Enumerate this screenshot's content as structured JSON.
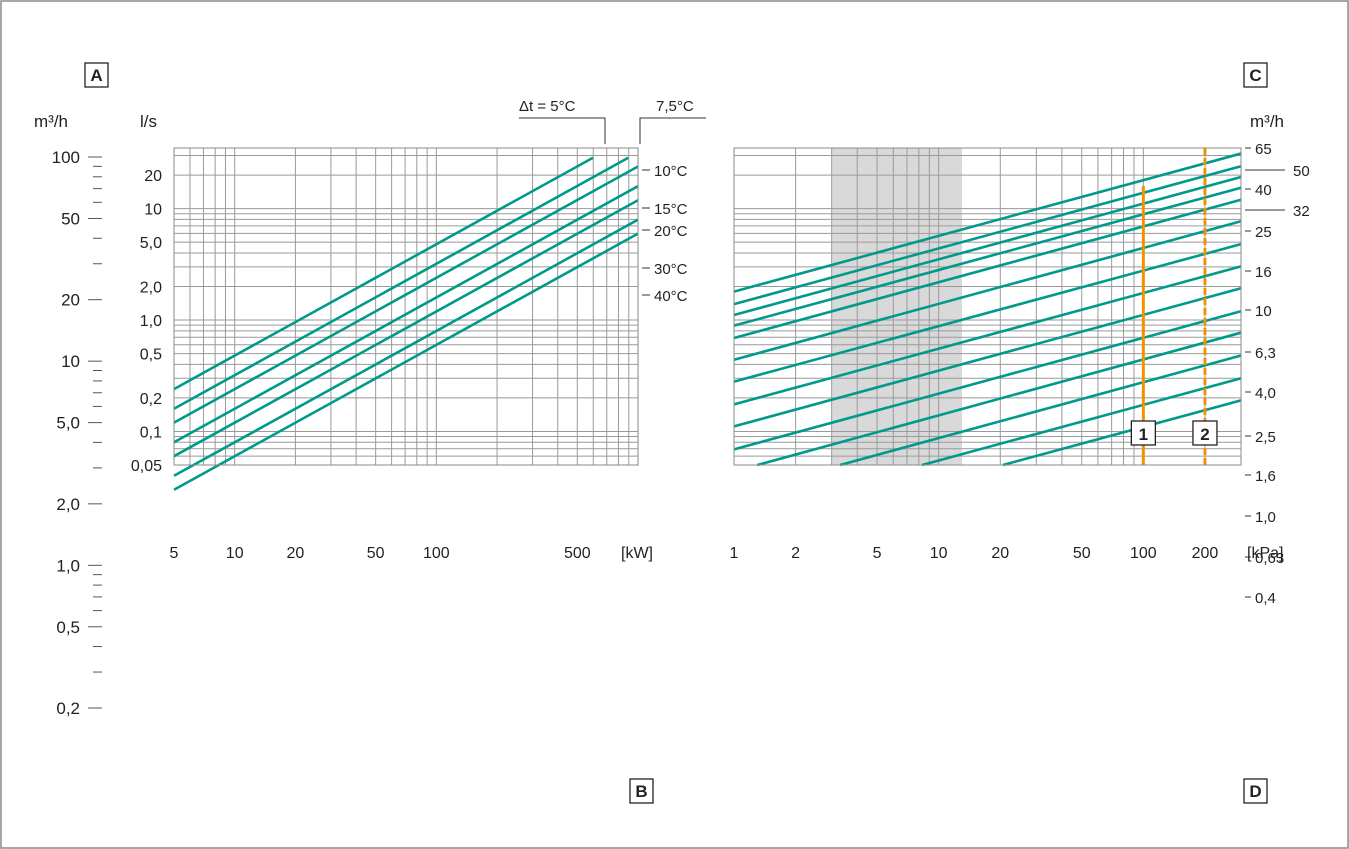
{
  "panels": {
    "left": {
      "box_labels": {
        "a": "A",
        "b": "B"
      },
      "axis_far_unit": "m³/h",
      "axis_inner_unit": "l/s",
      "x_unit": "[kW]",
      "delta_t_label": "Δt = 5°C",
      "delta_t2_label": "7,5°C"
    },
    "right": {
      "box_labels": {
        "c": "C",
        "d": "D"
      },
      "axis_right_unit": "m³/h",
      "x_unit": "[kPa]",
      "marker_labels": [
        "1",
        "2"
      ]
    }
  },
  "chart_data": [
    {
      "type": "line",
      "title": "",
      "xscale": "log",
      "yscale": "log",
      "xlim": [
        5,
        1000
      ],
      "ylim": [
        0.05,
        35
      ],
      "xlabel": "[kW]",
      "ylabel": "l/s",
      "x_tick_labels": [
        "5",
        "10",
        "20",
        "50",
        "100",
        "500"
      ],
      "x_ticks": [
        5,
        10,
        20,
        50,
        100,
        500
      ],
      "y_tick_labels": [
        "0,05",
        "0,1",
        "0,2",
        "0,5",
        "1,0",
        "2,0",
        "5,0",
        "10",
        "20"
      ],
      "y_ticks": [
        0.05,
        0.1,
        0.2,
        0.5,
        1.0,
        2.0,
        5.0,
        10,
        20
      ],
      "secondary_y_axis": {
        "label": "m³/h",
        "tick_labels": [
          "0,2",
          "0,5",
          "1,0",
          "2,0",
          "5,0",
          "10",
          "20",
          "50",
          "100"
        ],
        "ticks": [
          0.2,
          0.5,
          1.0,
          2.0,
          5.0,
          10,
          20,
          50,
          100
        ]
      },
      "series": [
        {
          "name": "Δt = 5°C",
          "points": [
            [
              5,
              0.24
            ],
            [
              598,
              28.6
            ]
          ]
        },
        {
          "name": "7,5°C",
          "points": [
            [
              5,
              0.16
            ],
            [
              895,
              28.6
            ]
          ]
        },
        {
          "name": "10°C",
          "points": [
            [
              5,
              0.12
            ],
            [
              1000,
              23.9
            ]
          ]
        },
        {
          "name": "15°C",
          "points": [
            [
              5,
              0.08
            ],
            [
              1000,
              15.9
            ]
          ]
        },
        {
          "name": "20°C",
          "points": [
            [
              5,
              0.06
            ],
            [
              1000,
              11.9
            ]
          ]
        },
        {
          "name": "30°C",
          "points": [
            [
              5,
              0.04
            ],
            [
              1000,
              7.96
            ]
          ]
        },
        {
          "name": "40°C",
          "points": [
            [
              5,
              0.03
            ],
            [
              1000,
              5.97
            ]
          ]
        }
      ],
      "grid": true
    },
    {
      "type": "line",
      "title": "",
      "xscale": "log",
      "yscale": "log",
      "xlim": [
        1,
        300
      ],
      "ylim": [
        0.05,
        35
      ],
      "xlabel": "[kPa]",
      "x_tick_labels": [
        "1",
        "2",
        "5",
        "10",
        "20",
        "50",
        "100",
        "200"
      ],
      "x_ticks": [
        1,
        2,
        5,
        10,
        20,
        50,
        100,
        200
      ],
      "right_axis_labels": [
        "65",
        "50",
        "40",
        "32",
        "25",
        "16",
        "10",
        "6,3",
        "4,0",
        "2,5",
        "1,6",
        "1,0",
        "0,63",
        "0,4"
      ],
      "shaded_x_range": [
        3,
        13
      ],
      "markers": [
        {
          "label": "1",
          "x": 100,
          "style": "solid"
        },
        {
          "label": "2",
          "x": 200,
          "style": "dashed"
        }
      ],
      "series": [
        {
          "name": "65",
          "points": [
            [
              1,
              1.8
            ],
            [
              300,
              31.2
            ]
          ]
        },
        {
          "name": "50",
          "points": [
            [
              1,
              1.39
            ],
            [
              300,
              24.0
            ]
          ]
        },
        {
          "name": "40",
          "points": [
            [
              1,
              1.11
            ],
            [
              300,
              19.2
            ]
          ]
        },
        {
          "name": "32",
          "points": [
            [
              1,
              0.89
            ],
            [
              300,
              15.4
            ]
          ]
        },
        {
          "name": "25",
          "points": [
            [
              1,
              0.69
            ],
            [
              300,
              12.0
            ]
          ]
        },
        {
          "name": "16",
          "points": [
            [
              1,
              0.44
            ],
            [
              300,
              7.7
            ]
          ]
        },
        {
          "name": "10",
          "points": [
            [
              1,
              0.28
            ],
            [
              300,
              4.8
            ]
          ]
        },
        {
          "name": "6,3",
          "points": [
            [
              1,
              0.175
            ],
            [
              300,
              3.03
            ]
          ]
        },
        {
          "name": "4,0",
          "points": [
            [
              1,
              0.111
            ],
            [
              300,
              1.93
            ]
          ]
        },
        {
          "name": "2,5",
          "points": [
            [
              1,
              0.069
            ],
            [
              300,
              1.2
            ]
          ]
        },
        {
          "name": "1,6",
          "points": [
            [
              1.3,
              0.05
            ],
            [
              300,
              0.77
            ]
          ]
        },
        {
          "name": "1,0",
          "points": [
            [
              3.3,
              0.05
            ],
            [
              300,
              0.48
            ]
          ]
        },
        {
          "name": "0,63",
          "points": [
            [
              8.3,
              0.05
            ],
            [
              300,
              0.3
            ]
          ]
        },
        {
          "name": "0,4",
          "points": [
            [
              20.6,
              0.05
            ],
            [
              300,
              0.19
            ]
          ]
        }
      ],
      "grid": true
    }
  ],
  "colors": {
    "curve": "#009a8a",
    "grid": "#9a9a9a",
    "shade": "#d9d9d9",
    "marker": "#f39200",
    "text": "#222222"
  }
}
